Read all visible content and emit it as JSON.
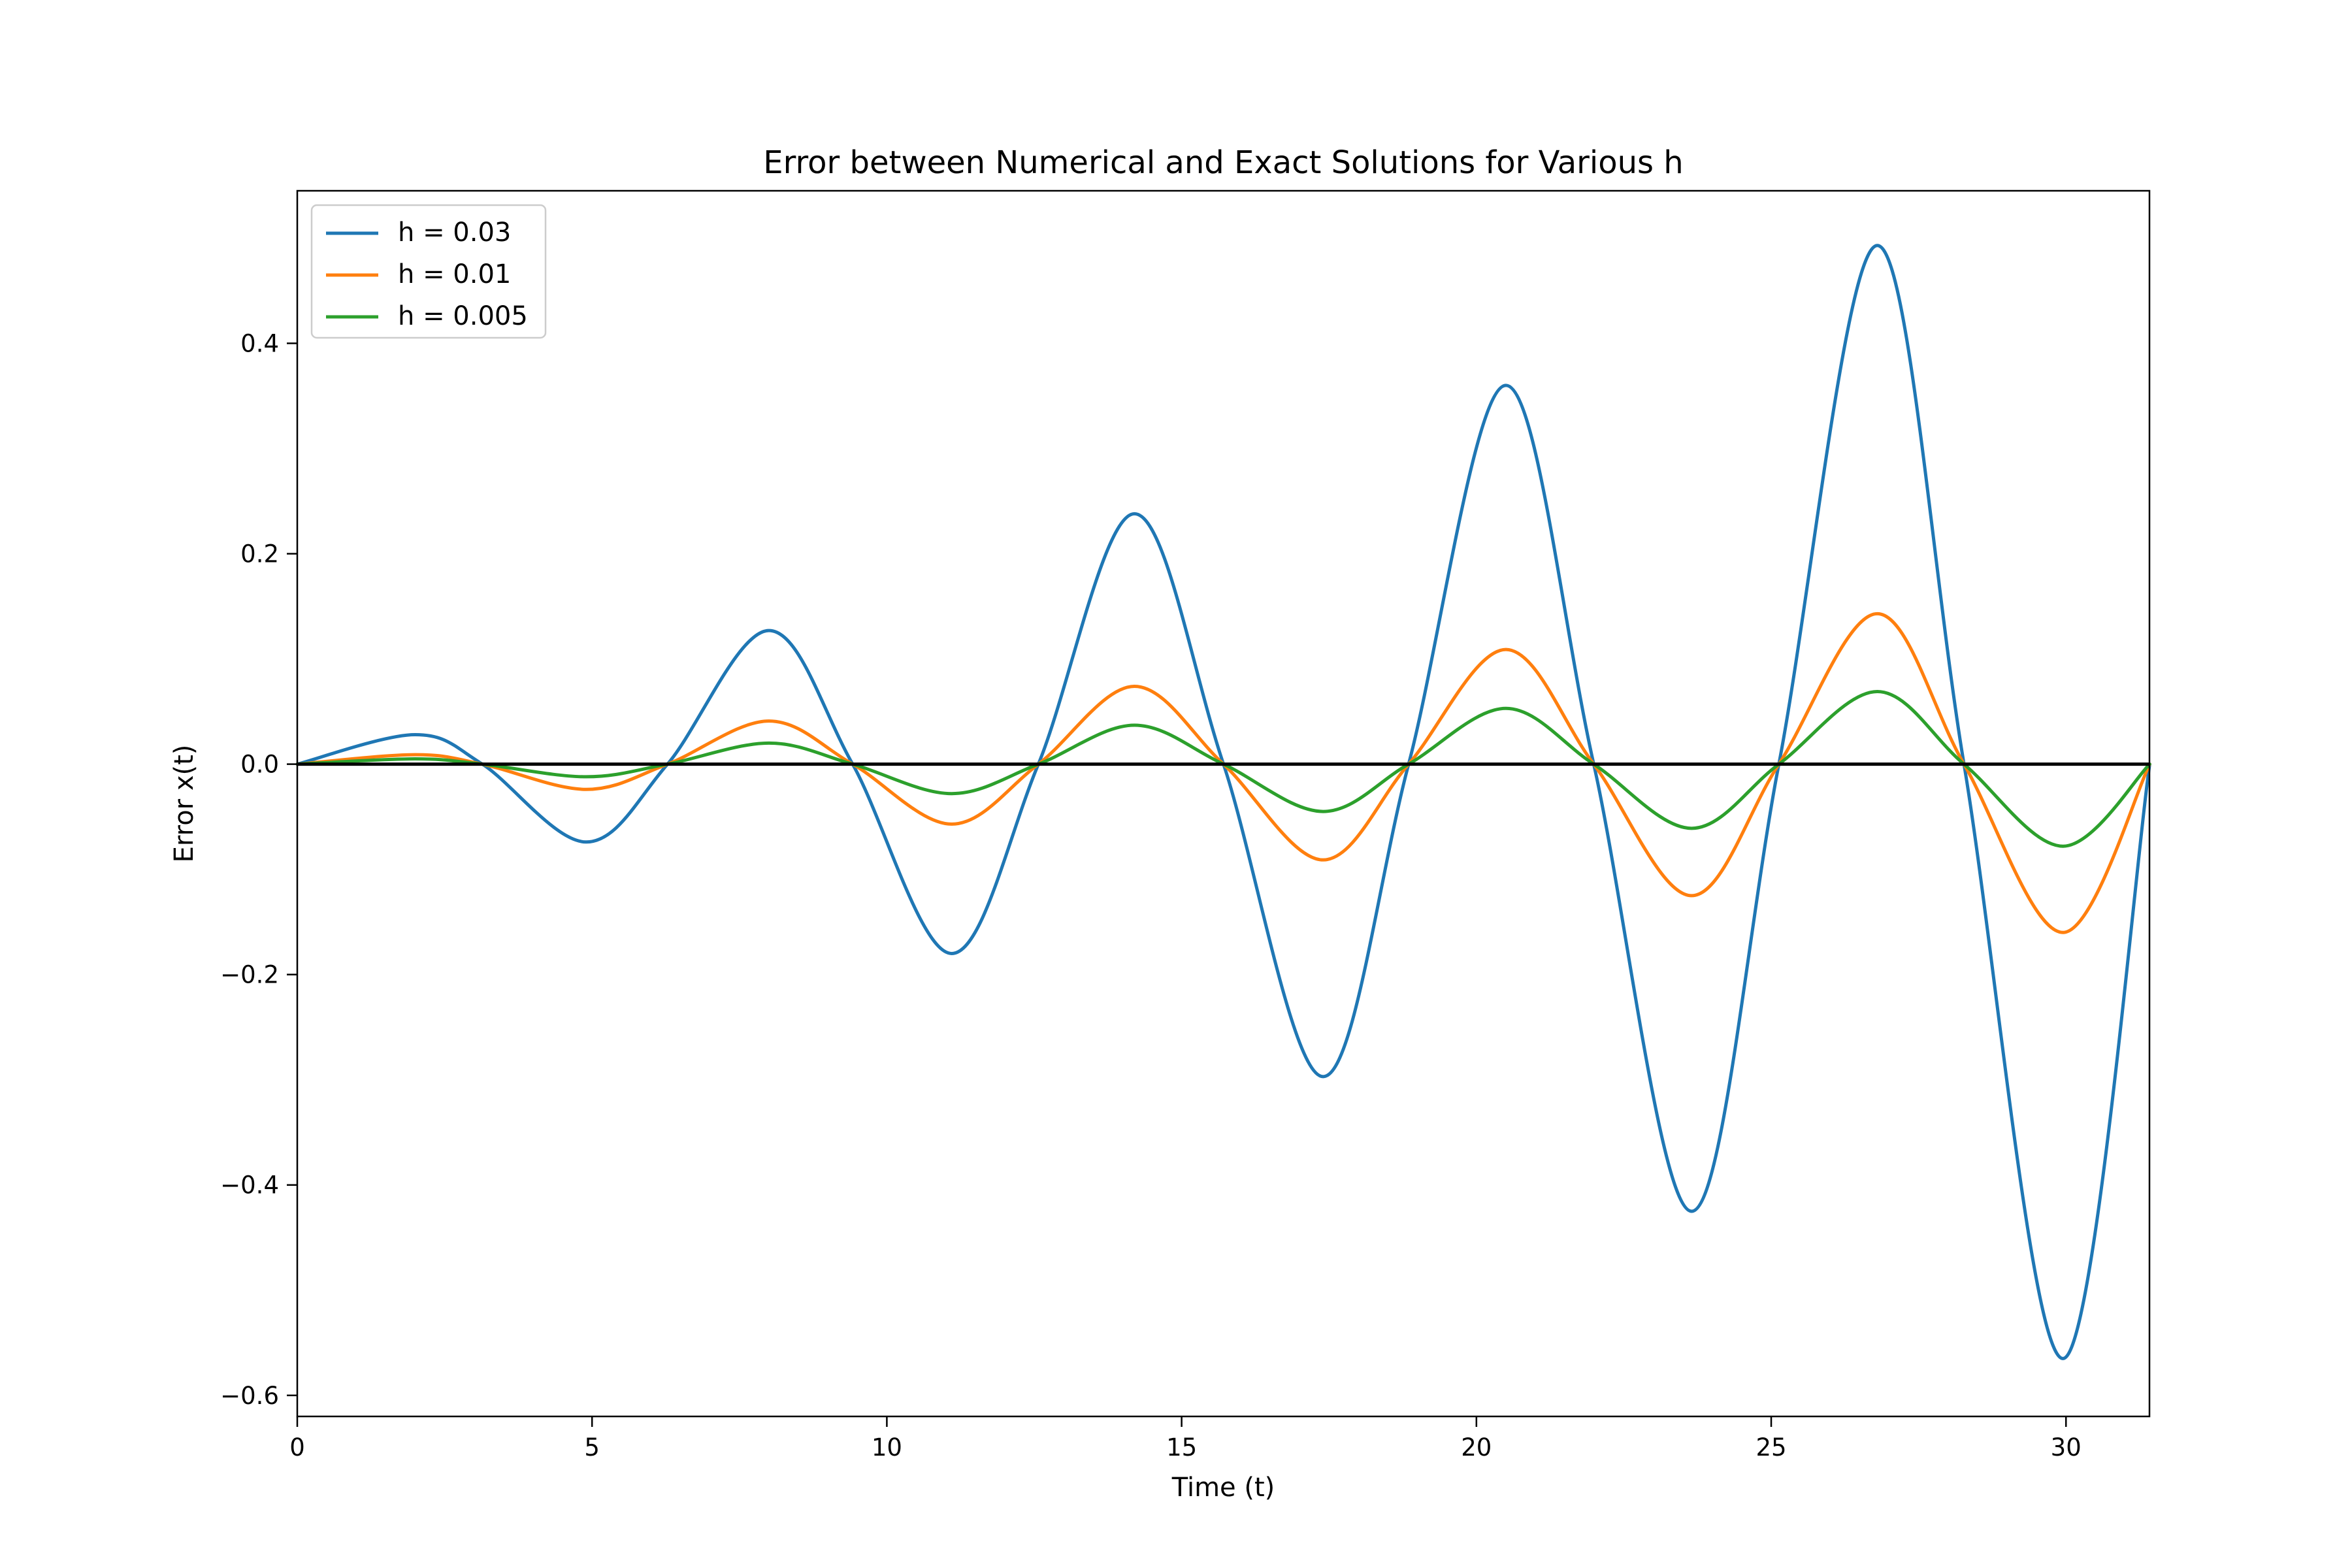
{
  "chart_data": {
    "type": "line",
    "title": "Error between Numerical and Exact Solutions for Various h",
    "xlabel": "Time (t)",
    "ylabel": "Error x(t)",
    "xlim": [
      0,
      31.4159
    ],
    "ylim": [
      -0.62,
      0.545
    ],
    "xticks": [
      {
        "value": 0,
        "label": "0"
      },
      {
        "value": 5,
        "label": "5"
      },
      {
        "value": 10,
        "label": "10"
      },
      {
        "value": 15,
        "label": "15"
      },
      {
        "value": 20,
        "label": "20"
      },
      {
        "value": 25,
        "label": "25"
      },
      {
        "value": 30,
        "label": "30"
      }
    ],
    "yticks": [
      {
        "value": -0.6,
        "label": "−0.6"
      },
      {
        "value": -0.4,
        "label": "−0.4"
      },
      {
        "value": -0.2,
        "label": "−0.2"
      },
      {
        "value": 0.0,
        "label": "0.0"
      },
      {
        "value": 0.2,
        "label": "0.2"
      },
      {
        "value": 0.4,
        "label": "0.4"
      }
    ],
    "grid": false,
    "legend_position": "top-left",
    "zero_line": {
      "y": 0,
      "color": "#000000"
    },
    "series": [
      {
        "name": "h = 0.03",
        "color": "#1f77b4",
        "x": [
          0,
          2.0,
          3.14,
          4.9,
          6.28,
          8.0,
          9.42,
          11.1,
          12.57,
          14.2,
          15.71,
          17.4,
          18.85,
          20.5,
          21.99,
          23.65,
          25.13,
          26.8,
          28.27,
          29.95,
          31.42
        ],
        "y": [
          0,
          0.028,
          0,
          -0.074,
          0,
          0.127,
          0,
          -0.18,
          0,
          0.238,
          0,
          -0.297,
          0,
          0.36,
          0,
          -0.425,
          0,
          0.493,
          0,
          -0.565,
          0
        ]
      },
      {
        "name": "h = 0.01",
        "color": "#ff7f0e",
        "x": [
          0,
          2.0,
          3.14,
          4.9,
          6.28,
          8.0,
          9.42,
          11.1,
          12.57,
          14.2,
          15.71,
          17.4,
          18.85,
          20.5,
          21.99,
          23.65,
          25.13,
          26.8,
          28.27,
          29.95,
          31.42
        ],
        "y": [
          0,
          0.009,
          0,
          -0.024,
          0,
          0.041,
          0,
          -0.057,
          0,
          0.074,
          0,
          -0.091,
          0,
          0.109,
          0,
          -0.125,
          0,
          0.143,
          0,
          -0.16,
          0
        ]
      },
      {
        "name": "h = 0.005",
        "color": "#2ca02c",
        "x": [
          0,
          2.0,
          3.14,
          4.9,
          6.28,
          8.0,
          9.42,
          11.1,
          12.57,
          14.2,
          15.71,
          17.4,
          18.85,
          20.5,
          21.99,
          23.65,
          25.13,
          26.8,
          28.27,
          29.95,
          31.42
        ],
        "y": [
          0,
          0.005,
          0,
          -0.012,
          0,
          0.02,
          0,
          -0.028,
          0,
          0.037,
          0,
          -0.045,
          0,
          0.053,
          0,
          -0.061,
          0,
          0.069,
          0,
          -0.078,
          0
        ]
      }
    ]
  }
}
